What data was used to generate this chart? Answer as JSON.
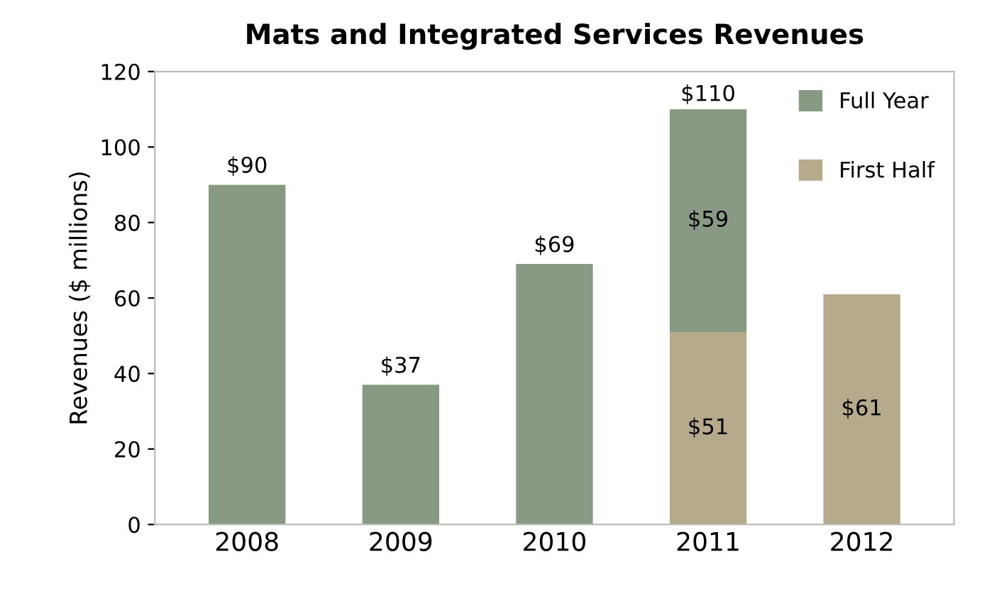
{
  "chart_data": {
    "type": "bar",
    "title": "Mats and Integrated Services Revenues",
    "ylabel": "Revenues ($ millions)",
    "categories": [
      "2008",
      "2009",
      "2010",
      "2011",
      "2012"
    ],
    "stacked": true,
    "series": [
      {
        "name": "First Half",
        "color": "#b5aa8c",
        "values": [
          null,
          null,
          null,
          51,
          61
        ],
        "value_labels": [
          null,
          null,
          null,
          "$51",
          "$61"
        ]
      },
      {
        "name": "Full Year",
        "color": "#889a84",
        "values": [
          90,
          37,
          69,
          59,
          null
        ],
        "value_labels": [
          "$90",
          "$37",
          "$69",
          "$59",
          null
        ]
      }
    ],
    "totals": [
      null,
      null,
      null,
      "$110",
      null
    ],
    "ylim": [
      0,
      120
    ],
    "yticks": [
      0,
      20,
      40,
      60,
      80,
      100,
      120
    ],
    "grid": false,
    "legend": "top right"
  }
}
